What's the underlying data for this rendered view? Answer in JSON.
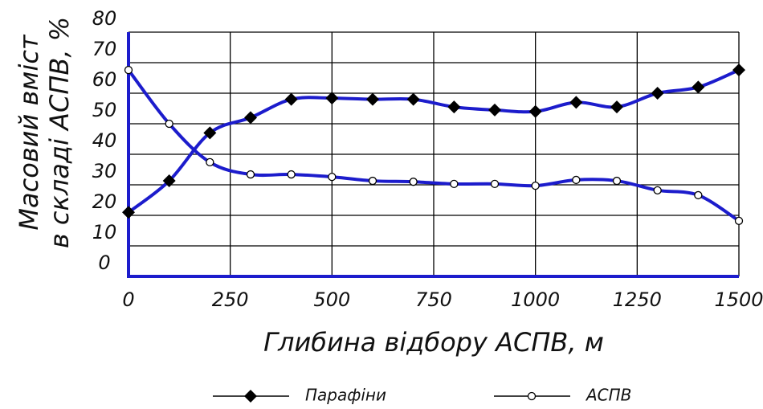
{
  "chart_data": {
    "type": "line",
    "xlabel": "Глибина відбору АСПВ, м",
    "ylabel": [
      "Масовий вміст",
      "в складі АСПВ, %"
    ],
    "x": [
      0,
      100,
      200,
      300,
      400,
      500,
      600,
      700,
      800,
      900,
      1000,
      1100,
      1200,
      1300,
      1400,
      1500
    ],
    "series": [
      {
        "name": "Парафіни",
        "color": "#1c1ccc",
        "marker": "diamond",
        "values": [
          21,
          31.3,
          47,
          52,
          58,
          58.4,
          58,
          58,
          55.5,
          54.5,
          54,
          57,
          55.5,
          60,
          62,
          67.6
        ]
      },
      {
        "name": "АСПВ",
        "color": "#1c1ccc",
        "marker": "circle",
        "values": [
          67.6,
          50,
          37.4,
          33.4,
          33.4,
          32.6,
          31.3,
          31,
          30.3,
          30.3,
          29.7,
          31.6,
          31.3,
          28.2,
          26.6,
          18.2
        ]
      }
    ],
    "xlim": [
      0,
      1500
    ],
    "xticks": [
      0,
      250,
      500,
      750,
      1000,
      1250,
      1500
    ],
    "ylim": [
      0,
      80
    ],
    "yticks": [
      0,
      10,
      20,
      30,
      40,
      50,
      60,
      70,
      80
    ],
    "grid": true,
    "legend": "bottom"
  }
}
